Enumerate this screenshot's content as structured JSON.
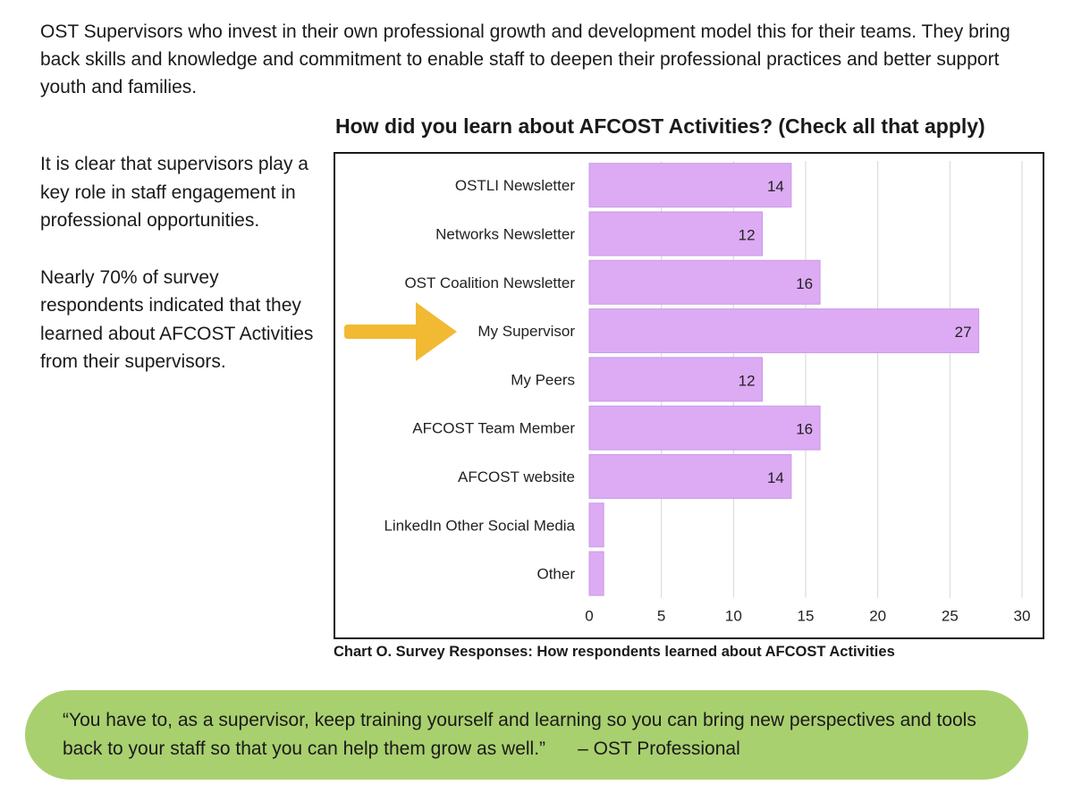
{
  "intro": {
    "text": "OST Supervisors who invest in their own professional growth and development model this for their teams. They bring back skills and knowledge and commitment to enable staff to deepen their professional practices and better support youth and families."
  },
  "side": {
    "para1": "It is clear that supervisors play a key role in staff engagement in professional opportunities.",
    "para2": "Nearly 70% of survey respondents indicated that they learned about AFCOST Activities from their supervisors."
  },
  "colors": {
    "bar": "#dcabf4",
    "bar_edge": "#c99be6",
    "arrow": "#f2b933",
    "quote_bg": "#a9d06f",
    "grid": "#d6d6d6"
  },
  "icons": {
    "highlight": "right-arrow-icon"
  },
  "chart_data": {
    "type": "bar",
    "orientation": "horizontal",
    "title": "How did you learn about AFCOST Activities? (Check all that apply)",
    "categories": [
      "OSTLI Newsletter",
      "Networks Newsletter",
      "OST Coalition Newsletter",
      "My Supervisor",
      "My Peers",
      "AFCOST Team Member",
      "AFCOST website",
      "LinkedIn Other Social Media",
      "Other"
    ],
    "values": [
      14,
      12,
      16,
      27,
      12,
      16,
      14,
      1,
      1
    ],
    "data_labels": [
      "14",
      "12",
      "16",
      "27",
      "12",
      "16",
      "14",
      "",
      ""
    ],
    "xlim": [
      0,
      30
    ],
    "xticks": [
      0,
      5,
      10,
      15,
      20,
      25,
      30
    ],
    "xlabel": "",
    "ylabel": "",
    "grid": "vertical",
    "legend": "none",
    "highlighted_category": "My Supervisor"
  },
  "caption": "Chart O.  Survey Responses:  How respondents learned about AFCOST Activities",
  "quote": {
    "text": "“You have to, as a supervisor, keep training yourself and learning so you can bring new perspectives and tools back to your staff so that you can help them grow as well.”",
    "attribution": "– OST Professional"
  }
}
